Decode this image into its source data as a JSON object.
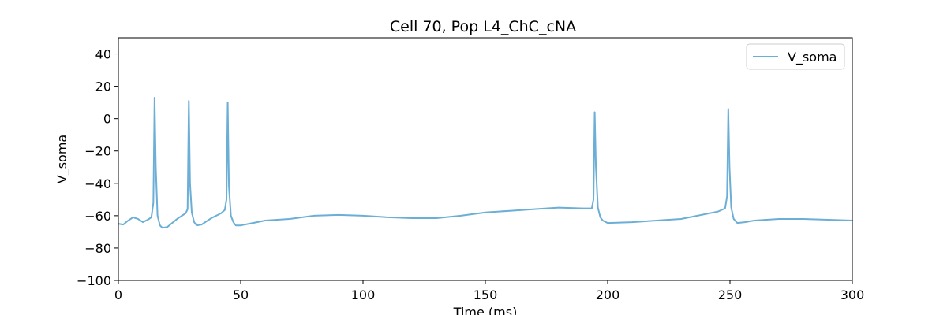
{
  "chart_data": {
    "type": "line",
    "title": "Cell 70, Pop L4_ChC_cNA",
    "xlabel": "Time (ms)",
    "ylabel": "V_soma",
    "xlim": [
      0,
      300
    ],
    "ylim": [
      -100,
      50
    ],
    "xticks": [
      0,
      50,
      100,
      150,
      200,
      250,
      300
    ],
    "yticks": [
      -100,
      -80,
      -60,
      -40,
      -20,
      0,
      20,
      40
    ],
    "grid": false,
    "legend_position": "top-right",
    "series": [
      {
        "name": "V_soma",
        "color": "#6baed6",
        "x": [
          0,
          2,
          4,
          6,
          8,
          10,
          12,
          13.5,
          14.3,
          14.8,
          15.3,
          16,
          17,
          18,
          20,
          22,
          24,
          26,
          27.5,
          28.3,
          28.8,
          29.3,
          30,
          31,
          32,
          34,
          36,
          38,
          40,
          42,
          43.5,
          44.2,
          44.7,
          45.2,
          46,
          47,
          48,
          50,
          55,
          60,
          70,
          80,
          90,
          100,
          110,
          120,
          130,
          140,
          150,
          160,
          170,
          180,
          190,
          193.5,
          194.2,
          194.7,
          195.2,
          196,
          197,
          198,
          200,
          210,
          220,
          230,
          240,
          245,
          248,
          248.8,
          249.3,
          249.8,
          250.5,
          251.5,
          253,
          256,
          260,
          270,
          280,
          290,
          300
        ],
        "y": [
          -65,
          -65.5,
          -63,
          -61,
          -62,
          -64,
          -62.5,
          -61,
          -52,
          13,
          -30,
          -60,
          -66,
          -67.5,
          -67,
          -64.5,
          -62,
          -60,
          -58.5,
          -56,
          11,
          -40,
          -58,
          -64,
          -66,
          -65.5,
          -63.5,
          -61.5,
          -60,
          -58.5,
          -56.5,
          -50,
          10,
          -42,
          -60,
          -64,
          -66,
          -66,
          -64.5,
          -63,
          -62,
          -60,
          -59.5,
          -60,
          -61,
          -61.5,
          -61.5,
          -60,
          -58,
          -57,
          -56,
          -55,
          -55.5,
          -55.5,
          -50,
          4,
          -30,
          -55,
          -61,
          -63,
          -64.5,
          -64,
          -63,
          -62,
          -59,
          -57.5,
          -55.5,
          -48,
          6,
          -30,
          -55,
          -62,
          -64.5,
          -64,
          -63,
          -62,
          -62,
          -62.5,
          -63
        ]
      }
    ]
  }
}
